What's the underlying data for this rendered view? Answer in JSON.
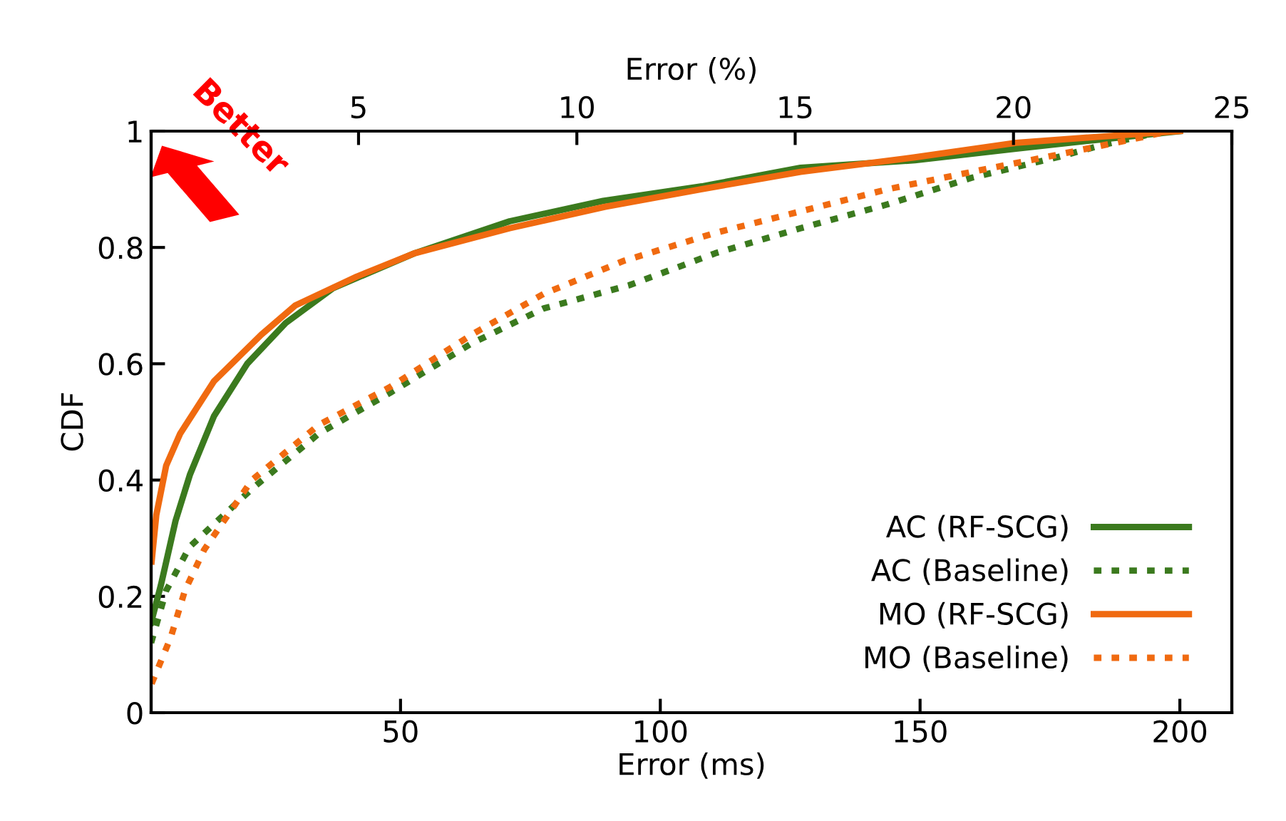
{
  "chart_data": {
    "type": "line",
    "xlabel": "Error (ms)",
    "ylabel": "CDF",
    "x2label": "Error (%)",
    "xlim": [
      2,
      210
    ],
    "xticks": [
      50,
      100,
      150,
      200
    ],
    "x2lim": [
      0.25,
      25
    ],
    "x2ticks": [
      5,
      10,
      15,
      20,
      25
    ],
    "ylim": [
      0,
      1
    ],
    "yticks": [
      0,
      0.2,
      0.4,
      0.6,
      0.8,
      1
    ],
    "grid": false,
    "legend": "bottom right",
    "marker": "none",
    "annotations": [
      "Better"
    ],
    "series": [
      {
        "name": "AC (RF-SCG)",
        "color": "#3b7a1e",
        "line_style": "solid",
        "x": [
          2,
          3.9,
          6.7,
          9.5,
          14.1,
          20.5,
          27.9,
          37,
          52.7,
          71,
          89,
          108,
          127,
          149,
          168.5,
          184,
          200
        ],
        "values": [
          0.155,
          0.22,
          0.33,
          0.41,
          0.51,
          0.6,
          0.67,
          0.73,
          0.79,
          0.845,
          0.88,
          0.905,
          0.937,
          0.95,
          0.97,
          0.985,
          1.0
        ]
      },
      {
        "name": "AC (Baseline)",
        "color": "#3b7a1e",
        "line_style": "dashed",
        "x": [
          2,
          4.9,
          9.4,
          21.4,
          34.3,
          48,
          63.7,
          77.5,
          94,
          110.6,
          127,
          143.7,
          160,
          176.8,
          185,
          197
        ],
        "values": [
          0.12,
          0.21,
          0.285,
          0.385,
          0.48,
          0.55,
          0.635,
          0.695,
          0.735,
          0.79,
          0.833,
          0.874,
          0.92,
          0.956,
          0.976,
          1.0
        ]
      },
      {
        "name": "MO (RF-SCG)",
        "color": "#f06a10",
        "line_style": "solid",
        "x": [
          2.1,
          3,
          4.9,
          7.6,
          14.1,
          23.2,
          29.7,
          41.6,
          52.7,
          71,
          89.4,
          107.8,
          127,
          149,
          168.5,
          184,
          200
        ],
        "values": [
          0.26,
          0.34,
          0.425,
          0.48,
          0.57,
          0.65,
          0.7,
          0.75,
          0.79,
          0.833,
          0.87,
          0.9,
          0.93,
          0.955,
          0.98,
          0.99,
          1.0
        ]
      },
      {
        "name": "MO (Baseline)",
        "color": "#f06a10",
        "line_style": "dashed",
        "x": [
          2.1,
          5.8,
          8.5,
          12.2,
          16.8,
          21.4,
          34.3,
          48,
          63.7,
          77.5,
          93,
          110.6,
          127,
          143.7,
          160,
          176.8,
          193,
          198
        ],
        "values": [
          0.05,
          0.13,
          0.21,
          0.28,
          0.34,
          0.4,
          0.495,
          0.56,
          0.65,
          0.72,
          0.777,
          0.825,
          0.862,
          0.9,
          0.93,
          0.96,
          0.99,
          1.0
        ]
      }
    ]
  }
}
